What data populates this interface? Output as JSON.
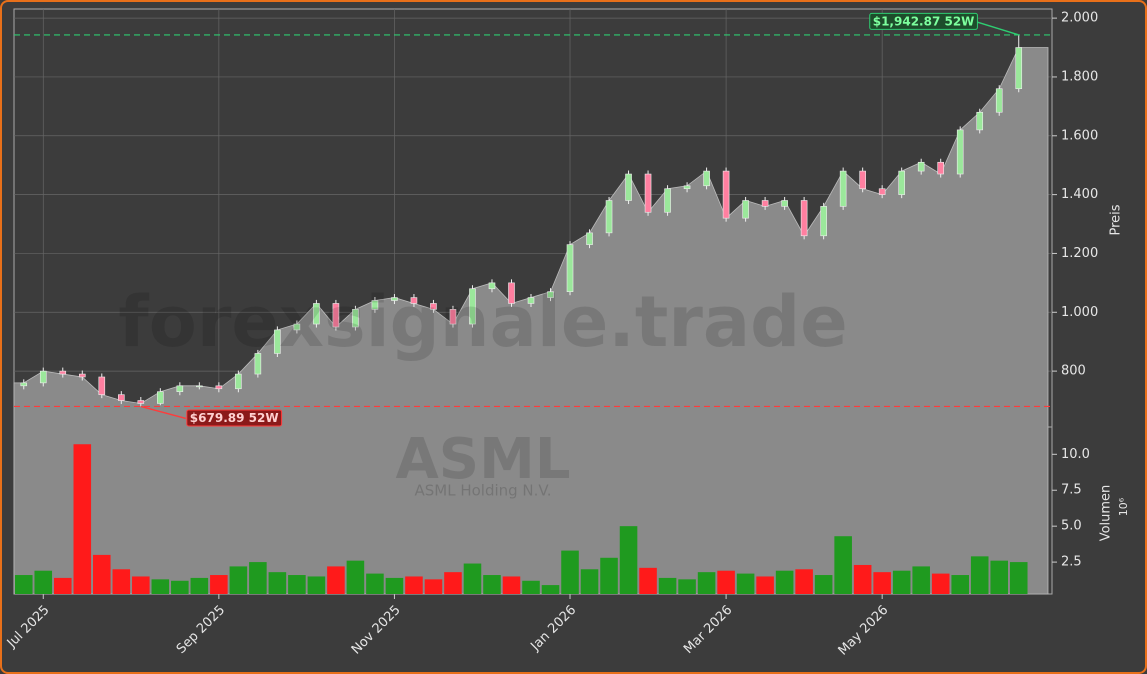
{
  "chart_data": {
    "type": "candlestick",
    "categories": [
      null,
      "Jul 2025",
      null,
      null,
      null,
      null,
      null,
      null,
      null,
      null,
      "Sep 2025",
      null,
      null,
      null,
      null,
      null,
      null,
      null,
      null,
      "Nov 2025",
      null,
      null,
      null,
      null,
      null,
      null,
      null,
      null,
      "Jan 2026",
      null,
      null,
      null,
      null,
      null,
      null,
      null,
      "Mar 2026",
      null,
      null,
      null,
      null,
      null,
      null,
      null,
      "May 2026",
      null,
      null,
      null,
      null,
      null,
      null,
      null
    ],
    "open": [
      750,
      760,
      800,
      790,
      780,
      720,
      700,
      690,
      730,
      750,
      750,
      740,
      790,
      860,
      940,
      960,
      1030,
      950,
      1010,
      1040,
      1050,
      1030,
      1010,
      960,
      1080,
      1100,
      1030,
      1050,
      1070,
      1230,
      1270,
      1380,
      1470,
      1340,
      1420,
      1430,
      1480,
      1320,
      1380,
      1360,
      1380,
      1260,
      1360,
      1480,
      1420,
      1400,
      1480,
      1510,
      1470,
      1620,
      1680,
      1760
    ],
    "high": [
      772,
      812,
      812,
      802,
      792,
      732,
      712,
      742,
      762,
      762,
      762,
      802,
      872,
      952,
      972,
      1042,
      1042,
      1022,
      1052,
      1062,
      1062,
      1042,
      1022,
      1092,
      1112,
      1112,
      1062,
      1082,
      1242,
      1282,
      1392,
      1482,
      1482,
      1432,
      1442,
      1492,
      1492,
      1392,
      1392,
      1392,
      1392,
      1372,
      1492,
      1492,
      1432,
      1492,
      1522,
      1522,
      1632,
      1692,
      1772,
      1942.87
    ],
    "low": [
      738,
      748,
      778,
      768,
      708,
      688,
      679.89,
      684,
      718,
      738,
      728,
      728,
      778,
      848,
      928,
      948,
      938,
      938,
      998,
      1028,
      1018,
      998,
      948,
      948,
      1068,
      1018,
      1018,
      1038,
      1058,
      1218,
      1258,
      1368,
      1328,
      1328,
      1408,
      1418,
      1308,
      1308,
      1348,
      1348,
      1248,
      1248,
      1348,
      1408,
      1388,
      1388,
      1468,
      1458,
      1458,
      1608,
      1668,
      1748
    ],
    "close": [
      760,
      800,
      790,
      780,
      720,
      700,
      690,
      730,
      750,
      750,
      740,
      790,
      860,
      940,
      960,
      1030,
      950,
      1010,
      1040,
      1050,
      1030,
      1010,
      960,
      1080,
      1100,
      1030,
      1050,
      1070,
      1230,
      1270,
      1380,
      1470,
      1340,
      1420,
      1430,
      1480,
      1320,
      1380,
      1360,
      1380,
      1260,
      1360,
      1480,
      1420,
      1400,
      1480,
      1510,
      1470,
      1620,
      1680,
      1760,
      1900
    ],
    "volume": [
      1.6,
      1.9,
      1.4,
      10.7,
      3.0,
      2.0,
      1.5,
      1.3,
      1.2,
      1.4,
      1.6,
      2.2,
      2.5,
      1.8,
      1.6,
      1.5,
      2.2,
      2.6,
      1.7,
      1.4,
      1.5,
      1.3,
      1.8,
      2.4,
      1.6,
      1.5,
      1.2,
      0.9,
      3.3,
      2.0,
      2.8,
      5.0,
      2.1,
      1.4,
      1.3,
      1.8,
      1.9,
      1.7,
      1.5,
      1.9,
      2.0,
      1.6,
      4.3,
      2.3,
      1.8,
      1.9,
      2.2,
      1.7,
      1.6,
      2.9,
      2.6,
      2.5
    ],
    "ylim": [
      610,
      2031
    ],
    "yticks": [
      800,
      {
        "value": 1000,
        "label": "1.000"
      },
      {
        "value": 1200,
        "label": "1.200"
      },
      {
        "value": 1400,
        "label": "1.400"
      },
      {
        "value": 1600,
        "label": "1.600"
      },
      {
        "value": 1800,
        "label": "1.800"
      },
      {
        "value": 2000,
        "label": "2.000"
      }
    ],
    "y_label": "Preis",
    "volume_ylim": [
      0.28,
      11.9
    ],
    "volume_yticks": [
      2.5,
      {
        "value": 5,
        "label": "5.0"
      },
      7.5,
      {
        "value": 10,
        "label": "10.0"
      }
    ],
    "volume_label": "Volumen",
    "volume_scale_label": "10⁶",
    "grid": true,
    "up_color": "#9be89b",
    "down_color": "#ff7fa0",
    "volume_up_color": "#1f9a1f",
    "volume_down_color": "#ff1a1a",
    "area_color": "#8a8a8a",
    "annotations": [
      {
        "text": "$1,942.87 52W",
        "value": 1942.87,
        "color": "#2ecc71"
      },
      {
        "text": "$679.89 52W",
        "value": 679.89,
        "color": "#ff3b3b"
      }
    ],
    "watermark": "forexsignale.trade",
    "symbol": "ASML",
    "company": "ASML Holding N.V."
  }
}
